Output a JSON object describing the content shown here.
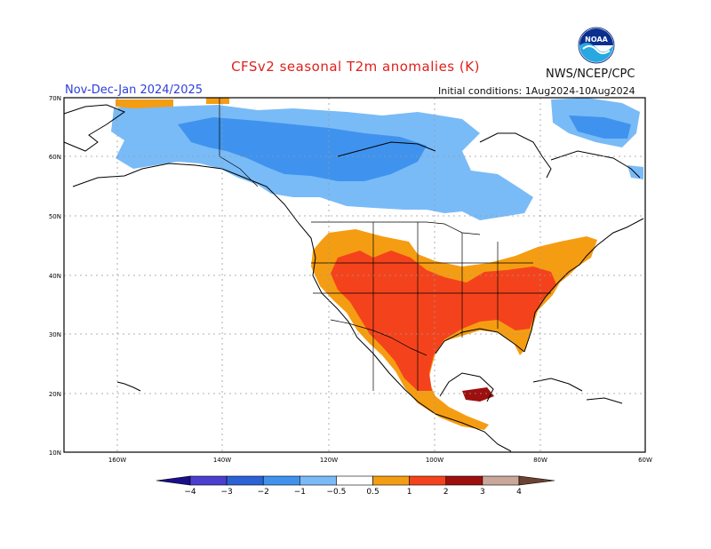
{
  "title": "CFSv2 seasonal T2m anomalies (K)",
  "org": "NWS/NCEP/CPC",
  "period": "Nov-Dec-Jan 2024/2025",
  "initial_conditions": "Initial conditions: 1Aug2024-10Aug2024",
  "logo_text": "NOAA",
  "colors": {
    "title": "#e0201c",
    "period": "#2d3fd8",
    "frame": "#000000",
    "grid": "#999999"
  },
  "lat_labels": [
    "70N",
    "60N",
    "50N",
    "40N",
    "30N",
    "20N",
    "10N"
  ],
  "lon_labels": [
    "160W",
    "140W",
    "120W",
    "100W",
    "80W",
    "60W"
  ],
  "legend": {
    "ticks": [
      "−4",
      "−3",
      "−2",
      "−1",
      "−0.5",
      "0.5",
      "1",
      "2",
      "3",
      "4"
    ],
    "bins": [
      {
        "range": "< −4",
        "color": "#1a0f8a"
      },
      {
        "range": "−4 to −3",
        "color": "#4a3fcf"
      },
      {
        "range": "−3 to −2",
        "color": "#2b63d6"
      },
      {
        "range": "−2 to −1",
        "color": "#3f93ee"
      },
      {
        "range": "−1 to −0.5",
        "color": "#79bbf7"
      },
      {
        "range": "−0.5 to 0.5",
        "color": "#ffffff"
      },
      {
        "range": "0.5 to 1",
        "color": "#f59d12"
      },
      {
        "range": "1 to 2",
        "color": "#f4431c"
      },
      {
        "range": "2 to 3",
        "color": "#9e0f0f"
      },
      {
        "range": "3 to 4",
        "color": "#c9a79a"
      },
      {
        "range": "> 4",
        "color": "#6b4233"
      }
    ]
  }
}
